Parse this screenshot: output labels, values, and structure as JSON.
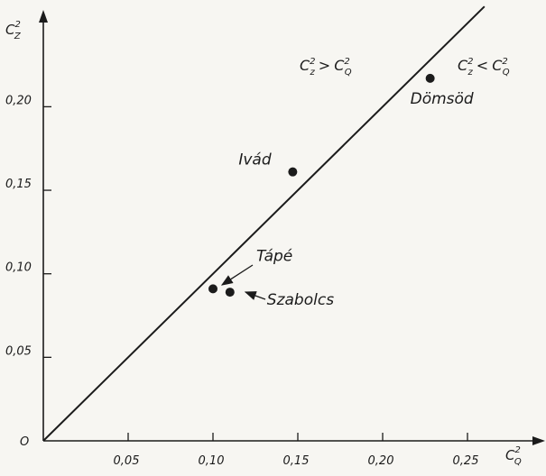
{
  "chart_data": {
    "type": "scatter",
    "xlabel": {
      "base": "C",
      "sup": "2",
      "sub": "Q"
    },
    "ylabel": {
      "base": "C",
      "sup": "2",
      "sub": "Z"
    },
    "xlim": [
      0,
      0.27
    ],
    "ylim": [
      0,
      0.24
    ],
    "x_ticks": [
      0.05,
      0.1,
      0.15,
      0.2,
      0.25
    ],
    "x_tick_labels": [
      "0,05",
      "0,10",
      "0,15",
      "0,20",
      "0,25"
    ],
    "y_ticks": [
      0.05,
      0.1,
      0.15,
      0.2
    ],
    "y_tick_labels": [
      "0,05",
      "0,10",
      "0,15",
      "0,20"
    ],
    "origin_label": "O",
    "grid": false,
    "reference_line": {
      "type": "y=x",
      "from": [
        0,
        0
      ],
      "to": [
        0.26,
        0.26
      ]
    },
    "regions": [
      {
        "id": "above",
        "lhs": {
          "base": "C",
          "sup": "2",
          "sub": "z"
        },
        "op": ">",
        "rhs": {
          "base": "C",
          "sup": "2",
          "sub": "Q"
        }
      },
      {
        "id": "below",
        "lhs": {
          "base": "C",
          "sup": "2",
          "sub": "z"
        },
        "op": "<",
        "rhs": {
          "base": "C",
          "sup": "2",
          "sub": "Q"
        }
      }
    ],
    "points": [
      {
        "label": "Dömsöd",
        "x": 0.228,
        "y": 0.217
      },
      {
        "label": "Ivád",
        "x": 0.147,
        "y": 0.161
      },
      {
        "label": "Tápé",
        "x": 0.1,
        "y": 0.091
      },
      {
        "label": "Szabolcs",
        "x": 0.11,
        "y": 0.089
      }
    ]
  }
}
